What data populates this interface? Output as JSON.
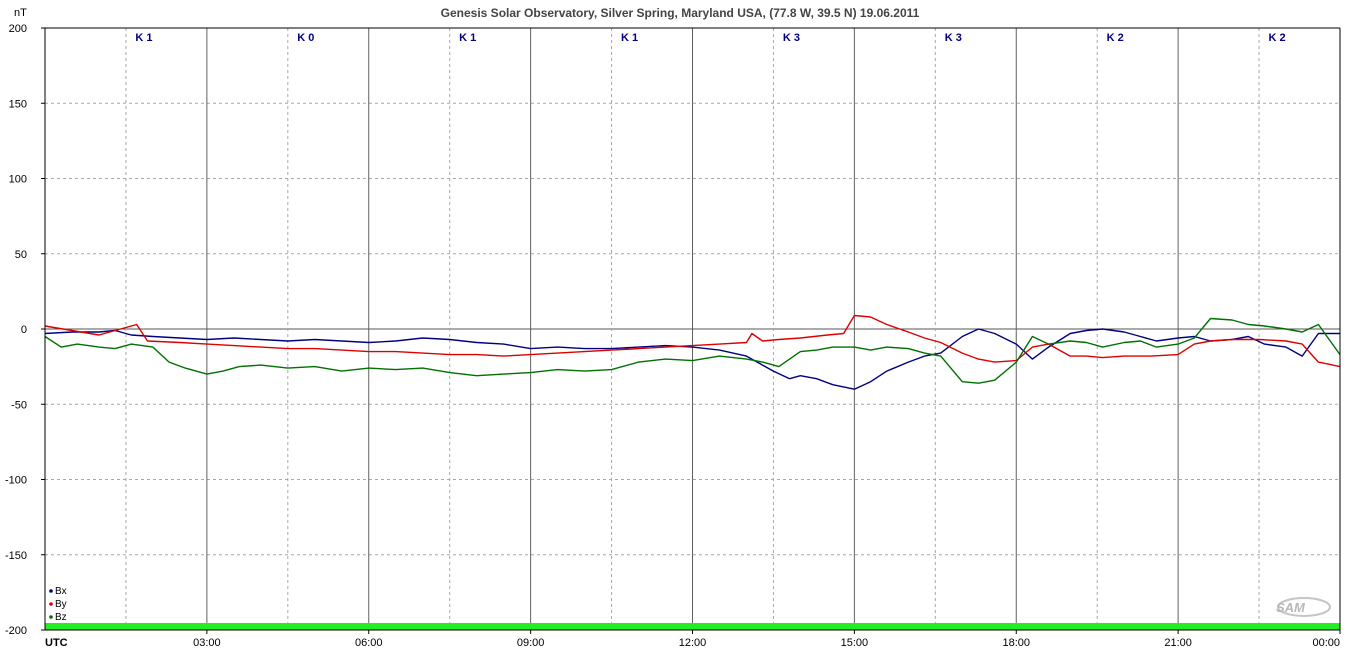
{
  "chart_data": {
    "type": "line",
    "title": "Genesis Solar Observatory, Silver Spring, Maryland USA, (77.8 W, 39.5 N)  19.06.2011",
    "ylabel": "nT",
    "xlabel": "UTC",
    "ylim": [
      -200,
      200
    ],
    "xlim": [
      0,
      24
    ],
    "y_ticks": [
      200,
      150,
      100,
      50,
      0,
      -50,
      -100,
      -150,
      -200
    ],
    "x_ticks": [
      {
        "x": 3,
        "label": "03:00"
      },
      {
        "x": 6,
        "label": "06:00"
      },
      {
        "x": 9,
        "label": "09:00"
      },
      {
        "x": 12,
        "label": "12:00"
      },
      {
        "x": 15,
        "label": "15:00"
      },
      {
        "x": 18,
        "label": "18:00"
      },
      {
        "x": 21,
        "label": "21:00"
      },
      {
        "x": 24,
        "label": "00:00"
      }
    ],
    "grid": true,
    "legend_position": "bottom-left",
    "k_index": [
      "K 1",
      "K 0",
      "K 1",
      "K 1",
      "K 3",
      "K 3",
      "K 2",
      "K 2"
    ],
    "series": [
      {
        "name": "Bx",
        "color": "#000080",
        "x": [
          0,
          0.5,
          1,
          1.3,
          1.6,
          2,
          2.5,
          3,
          3.5,
          4,
          4.5,
          5,
          5.5,
          6,
          6.5,
          7,
          7.5,
          8,
          8.5,
          9,
          9.5,
          10,
          10.5,
          11,
          11.5,
          12,
          12.5,
          13,
          13.2,
          13.5,
          13.8,
          14,
          14.3,
          14.6,
          15,
          15.3,
          15.6,
          16,
          16.3,
          16.6,
          17,
          17.3,
          17.6,
          18,
          18.3,
          18.6,
          19,
          19.3,
          19.6,
          20,
          20.3,
          20.6,
          21,
          21.3,
          21.6,
          22,
          22.3,
          22.6,
          23,
          23.3,
          23.6,
          24
        ],
        "y": [
          -3,
          -2,
          -2,
          -1,
          -4,
          -5,
          -6,
          -7,
          -6,
          -7,
          -8,
          -7,
          -8,
          -9,
          -8,
          -6,
          -7,
          -9,
          -10,
          -13,
          -12,
          -13,
          -13,
          -12,
          -11,
          -12,
          -14,
          -18,
          -22,
          -28,
          -33,
          -31,
          -33,
          -37,
          -40,
          -35,
          -28,
          -22,
          -18,
          -16,
          -5,
          0,
          -3,
          -10,
          -20,
          -12,
          -3,
          -1,
          0,
          -2,
          -5,
          -8,
          -6,
          -5,
          -8,
          -7,
          -5,
          -10,
          -12,
          -18,
          -3,
          -3
        ]
      },
      {
        "name": "By",
        "color": "#dd0000",
        "x": [
          0,
          0.5,
          1,
          1.5,
          1.7,
          1.9,
          2.5,
          3,
          3.5,
          4,
          4.5,
          5,
          5.5,
          6,
          6.5,
          7,
          7.5,
          8,
          8.5,
          9,
          9.5,
          10,
          10.5,
          11,
          11.5,
          12,
          12.5,
          13,
          13.1,
          13.3,
          13.6,
          14,
          14.5,
          14.8,
          15,
          15.3,
          15.6,
          16,
          16.3,
          16.6,
          17,
          17.3,
          17.6,
          18,
          18.3,
          18.6,
          19,
          19.3,
          19.6,
          20,
          20.5,
          21,
          21.3,
          21.6,
          22,
          22.5,
          23,
          23.3,
          23.6,
          24
        ],
        "y": [
          2,
          -1,
          -4,
          1,
          3,
          -8,
          -9,
          -10,
          -11,
          -12,
          -13,
          -13,
          -14,
          -15,
          -15,
          -16,
          -17,
          -17,
          -18,
          -17,
          -16,
          -15,
          -14,
          -13,
          -12,
          -11,
          -10,
          -9,
          -3,
          -8,
          -7,
          -6,
          -4,
          -3,
          9,
          8,
          3,
          -2,
          -6,
          -9,
          -16,
          -20,
          -22,
          -21,
          -12,
          -10,
          -18,
          -18,
          -19,
          -18,
          -18,
          -17,
          -10,
          -8,
          -7,
          -7,
          -8,
          -10,
          -22,
          -25
        ]
      },
      {
        "name": "Bz",
        "color": "#007000",
        "x": [
          0,
          0.3,
          0.6,
          1,
          1.3,
          1.6,
          2,
          2.3,
          2.6,
          3,
          3.3,
          3.6,
          4,
          4.5,
          5,
          5.5,
          6,
          6.5,
          7,
          7.5,
          8,
          8.5,
          9,
          9.5,
          10,
          10.5,
          11,
          11.5,
          12,
          12.5,
          13,
          13.3,
          13.6,
          14,
          14.3,
          14.6,
          15,
          15.3,
          15.6,
          16,
          16.3,
          16.6,
          17,
          17.3,
          17.6,
          18,
          18.3,
          18.6,
          19,
          19.3,
          19.6,
          20,
          20.3,
          20.6,
          21,
          21.3,
          21.6,
          22,
          22.3,
          22.6,
          23,
          23.3,
          23.6,
          24
        ],
        "y": [
          -5,
          -12,
          -10,
          -12,
          -13,
          -10,
          -12,
          -22,
          -26,
          -30,
          -28,
          -25,
          -24,
          -26,
          -25,
          -28,
          -26,
          -27,
          -26,
          -29,
          -31,
          -30,
          -29,
          -27,
          -28,
          -27,
          -22,
          -20,
          -21,
          -18,
          -20,
          -22,
          -25,
          -15,
          -14,
          -12,
          -12,
          -14,
          -12,
          -13,
          -16,
          -18,
          -35,
          -36,
          -34,
          -22,
          -5,
          -10,
          -8,
          -9,
          -12,
          -9,
          -8,
          -12,
          -10,
          -6,
          7,
          6,
          3,
          2,
          0,
          -2,
          3,
          -17
        ]
      }
    ]
  },
  "logo_text": "SAM"
}
